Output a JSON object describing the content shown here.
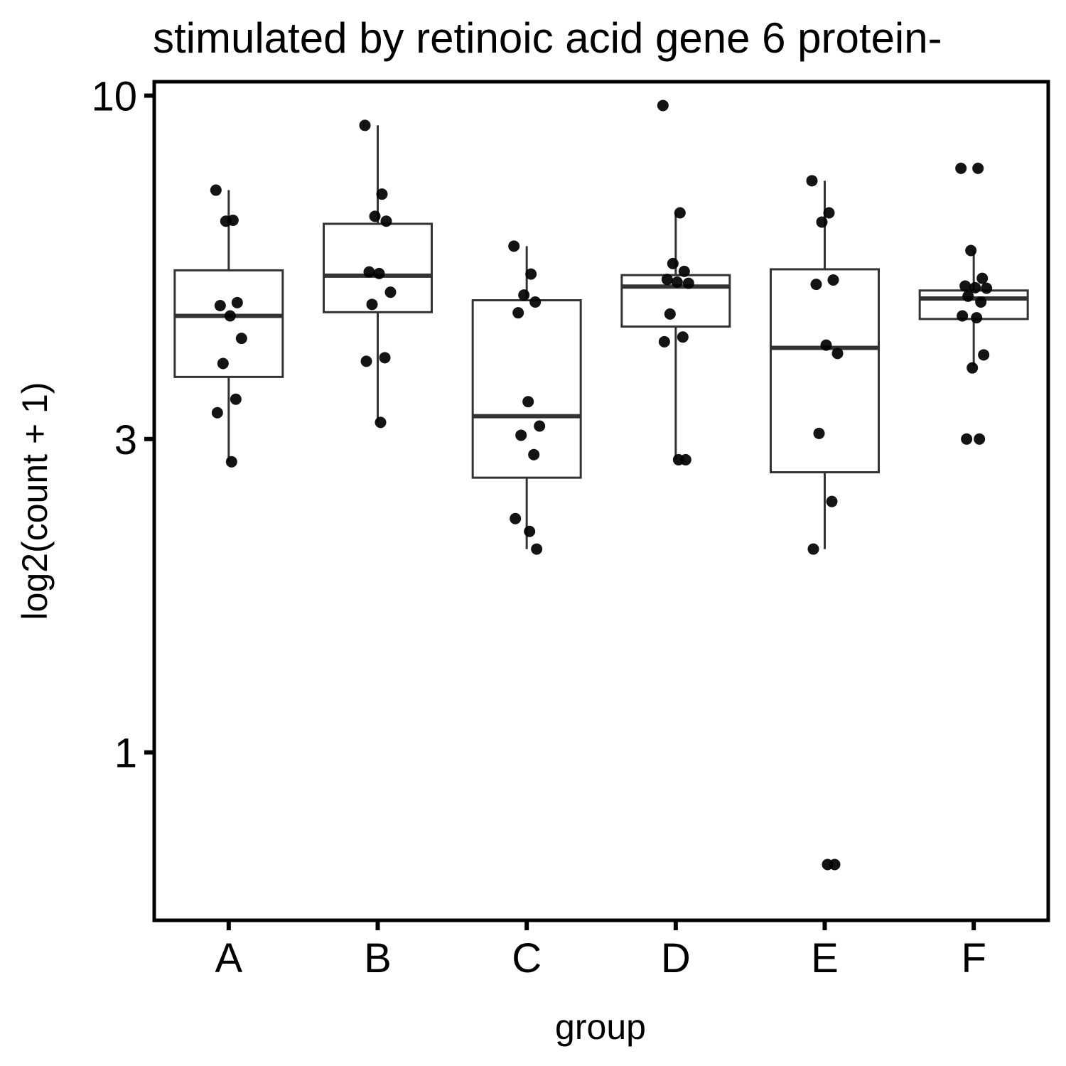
{
  "chart_data": {
    "type": "boxplot",
    "title": "stimulated by retinoic acid gene 6 protein-",
    "xlabel": "group",
    "ylabel": "log2(count + 1)",
    "y_scale": "log10",
    "y_ticks": [
      1,
      3,
      10
    ],
    "y_tick_labels": [
      "1",
      "3",
      "10"
    ],
    "ylim": [
      0.555,
      10.5
    ],
    "grid": false,
    "legend": "none",
    "categories": [
      "A",
      "B",
      "C",
      "D",
      "E",
      "F"
    ],
    "boxes": [
      {
        "group": "A",
        "whisker_low": 2.77,
        "q1": 3.73,
        "median": 4.62,
        "q3": 5.42,
        "whisker_high": 7.18
      },
      {
        "group": "B",
        "whisker_low": 3.18,
        "q1": 4.68,
        "median": 5.32,
        "q3": 6.38,
        "whisker_high": 9.01
      },
      {
        "group": "C",
        "whisker_low": 2.04,
        "q1": 2.62,
        "median": 3.25,
        "q3": 4.88,
        "whisker_high": 5.9
      },
      {
        "group": "D",
        "whisker_low": 2.79,
        "q1": 4.45,
        "median": 5.12,
        "q3": 5.33,
        "whisker_high": 6.63
      },
      {
        "group": "E",
        "whisker_low": 2.04,
        "q1": 2.67,
        "median": 4.13,
        "q3": 5.44,
        "whisker_high": 7.42
      },
      {
        "group": "F",
        "whisker_low": 3.88,
        "q1": 4.57,
        "median": 4.91,
        "q3": 5.05,
        "whisker_high": 5.81
      }
    ],
    "points": [
      {
        "group": "A",
        "values": [
          7.18,
          6.46,
          6.44,
          4.84,
          4.79,
          4.62,
          4.27,
          3.91,
          3.45,
          3.29,
          2.77
        ]
      },
      {
        "group": "B",
        "values": [
          9.01,
          7.08,
          6.55,
          6.44,
          5.39,
          5.36,
          5.02,
          4.81,
          3.99,
          3.94,
          3.18
        ]
      },
      {
        "group": "C",
        "values": [
          5.9,
          5.35,
          4.97,
          4.85,
          4.67,
          3.42,
          3.14,
          3.04,
          2.84,
          2.27,
          2.17,
          2.04
        ]
      },
      {
        "group": "D",
        "values": [
          9.66,
          6.63,
          5.55,
          5.4,
          5.25,
          5.2,
          5.18,
          4.65,
          4.29,
          4.22,
          2.79,
          2.79
        ]
      },
      {
        "group": "E",
        "values": [
          7.42,
          6.63,
          6.42,
          5.24,
          5.16,
          4.17,
          4.05,
          3.06,
          2.41,
          2.04,
          0.675,
          0.675
        ]
      },
      {
        "group": "F",
        "values": [
          7.75,
          7.75,
          5.81,
          5.27,
          5.13,
          5.1,
          5.09,
          4.95,
          4.85,
          4.62,
          4.59,
          4.03,
          3.85,
          3.0,
          3.0
        ]
      }
    ]
  }
}
